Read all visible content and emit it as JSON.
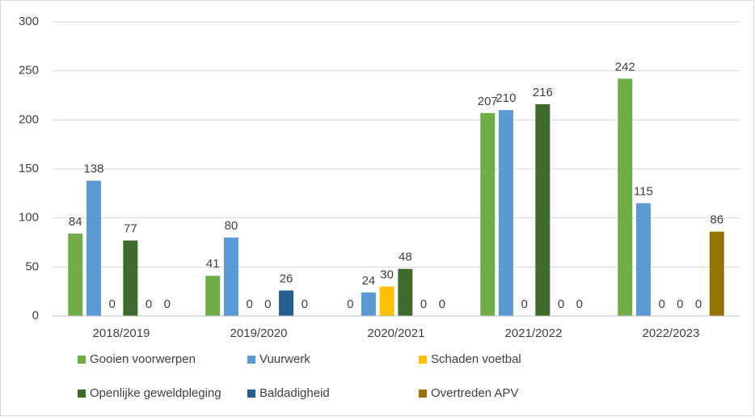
{
  "chart_data": {
    "type": "bar",
    "categories": [
      "2018/2019",
      "2019/2020",
      "2020/2021",
      "2021/2022",
      "2022/2023"
    ],
    "series": [
      {
        "name": "Gooien voorwerpen",
        "color": "#70ad47",
        "values": [
          84,
          41,
          0,
          207,
          242
        ]
      },
      {
        "name": "Vuurwerk",
        "color": "#5b9bd5",
        "values": [
          138,
          80,
          24,
          210,
          115
        ]
      },
      {
        "name": "Schaden voetbal",
        "color": "#ffc000",
        "values": [
          0,
          0,
          30,
          0,
          0
        ]
      },
      {
        "name": "Openlijke geweldpleging",
        "color": "#3e6b2b",
        "values": [
          77,
          0,
          48,
          216,
          0
        ]
      },
      {
        "name": "Baldadigheid",
        "color": "#255e91",
        "values": [
          0,
          26,
          0,
          0,
          0
        ]
      },
      {
        "name": "Overtreden APV",
        "color": "#997300",
        "values": [
          0,
          0,
          0,
          0,
          86
        ]
      }
    ],
    "ylim": [
      0,
      300
    ],
    "yticks": [
      0,
      50,
      100,
      150,
      200,
      250,
      300
    ],
    "grid": true,
    "legend": "bottom"
  }
}
